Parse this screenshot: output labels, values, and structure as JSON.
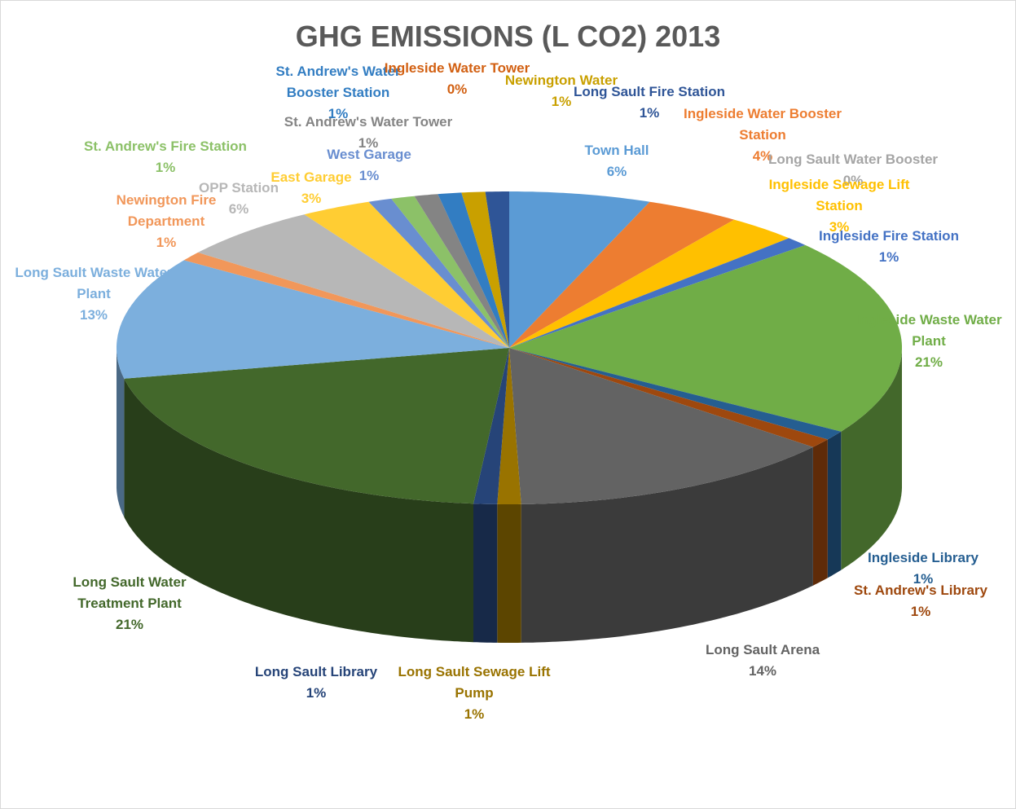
{
  "chart_data": {
    "type": "pie",
    "title": "GHG EMISSIONS (L CO2) 2013",
    "categories": [
      "Town Hall",
      "Ingleside Water Booster Station",
      "Long Sault Water Booster",
      "Ingleside Sewage Lift Station",
      "Ingleside Fire Station",
      "Ingleside Waste Water Plant",
      "Ingleside Library",
      "St. Andrew's Library",
      "Long Sault Arena",
      "Long Sault Sewage Lift Pump",
      "Long Sault Library",
      "Long Sault Water Treatment Plant",
      "Long Sault Waste Water Plant",
      "Newington Fire Department",
      "OPP Station",
      "East Garage",
      "West Garage",
      "St. Andrew's Fire Station",
      "St. Andrew's Water Tower",
      "St. Andrew's Water Booster Station",
      "Ingleside Water Tower",
      "Newington Water",
      "Long Sault Fire Station"
    ],
    "values": [
      6,
      4,
      0,
      3,
      1,
      21,
      1,
      1,
      14,
      1,
      1,
      21,
      13,
      1,
      6,
      3,
      1,
      1,
      1,
      1,
      0,
      1,
      1
    ],
    "value_labels": [
      "6%",
      "4%",
      "0%",
      "3%",
      "1%",
      "21%",
      "1%",
      "1%",
      "14%",
      "1%",
      "1%",
      "21%",
      "13%",
      "1%",
      "6%",
      "3%",
      "1%",
      "1%",
      "1%",
      "1%",
      "0%",
      "1%",
      "1%"
    ],
    "colors": [
      "#5b9bd5",
      "#ed7d31",
      "#a5a5a5",
      "#ffc000",
      "#4472c4",
      "#70ad47",
      "#255e91",
      "#9e480e",
      "#636363",
      "#997300",
      "#264478",
      "#43682b",
      "#7cafdd",
      "#f1975a",
      "#b7b7b7",
      "#ffcd33",
      "#698ed0",
      "#8cc168",
      "#848484",
      "#327dc2",
      "#d26012",
      "#c9a000",
      "#2f5597"
    ]
  }
}
